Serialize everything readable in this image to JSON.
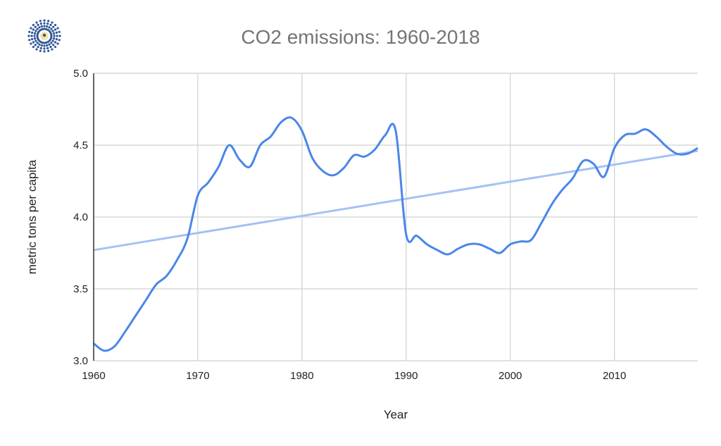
{
  "chart_data": {
    "type": "line",
    "title": "CO2 emissions: 1960-2018",
    "xlabel": "Year",
    "ylabel": "metric tons per capita",
    "xlim": [
      1960,
      2018
    ],
    "ylim": [
      3.0,
      5.0
    ],
    "x_ticks": [
      "1960",
      "1970",
      "1980",
      "1990",
      "2000",
      "2010"
    ],
    "y_ticks": [
      "3.0",
      "3.5",
      "4.0",
      "4.5",
      "5.0"
    ],
    "grid": true,
    "legend": "none",
    "series": [
      {
        "color": "#4a86e8",
        "x": [
          1960,
          1961,
          1962,
          1963,
          1964,
          1965,
          1966,
          1967,
          1968,
          1969,
          1970,
          1971,
          1972,
          1973,
          1974,
          1975,
          1976,
          1977,
          1978,
          1979,
          1980,
          1981,
          1982,
          1983,
          1984,
          1985,
          1986,
          1987,
          1988,
          1989,
          1990,
          1991,
          1992,
          1993,
          1994,
          1995,
          1996,
          1997,
          1998,
          1999,
          2000,
          2001,
          2002,
          2003,
          2004,
          2005,
          2006,
          2007,
          2008,
          2009,
          2010,
          2011,
          2012,
          2013,
          2014,
          2015,
          2016,
          2017,
          2018
        ],
        "values": [
          3.12,
          3.07,
          3.1,
          3.2,
          3.31,
          3.42,
          3.53,
          3.59,
          3.7,
          3.85,
          4.15,
          4.24,
          4.35,
          4.5,
          4.4,
          4.35,
          4.5,
          4.56,
          4.66,
          4.69,
          4.6,
          4.41,
          4.32,
          4.29,
          4.34,
          4.43,
          4.42,
          4.47,
          4.57,
          4.6,
          3.88,
          3.87,
          3.81,
          3.77,
          3.74,
          3.78,
          3.81,
          3.81,
          3.78,
          3.75,
          3.81,
          3.83,
          3.84,
          3.96,
          4.09,
          4.19,
          4.27,
          4.39,
          4.37,
          4.28,
          4.48,
          4.57,
          4.58,
          4.61,
          4.56,
          4.49,
          4.44,
          4.44,
          4.48
        ]
      }
    ],
    "trendline": {
      "type": "linear",
      "color": "#a4c2f4",
      "start": [
        1960,
        3.77
      ],
      "end": [
        2018,
        4.46
      ]
    }
  }
}
